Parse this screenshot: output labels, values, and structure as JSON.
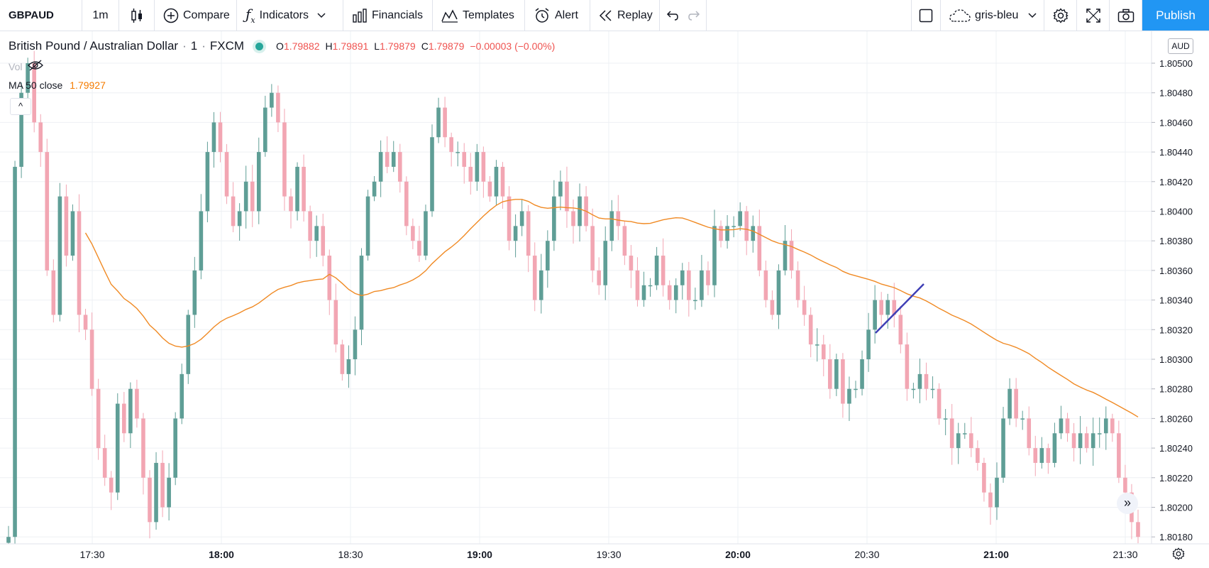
{
  "toolbar": {
    "symbol": "GBPAUD",
    "interval": "1m",
    "compare": "Compare",
    "indicators": "Indicators",
    "financials": "Financials",
    "templates": "Templates",
    "alert": "Alert",
    "replay": "Replay",
    "layout_name": "gris-bleu",
    "publish": "Publish"
  },
  "legend": {
    "pair": "British Pound / Australian Dollar",
    "sep1": "·",
    "interval": "1",
    "sep2": "·",
    "source": "FXCM",
    "o_label": "O",
    "o": "1.79882",
    "h_label": "H",
    "h": "1.79891",
    "l_label": "L",
    "l": "1.79879",
    "c_label": "C",
    "c": "1.79879",
    "change": "−0.00003 (−0.00%)",
    "vol_label": "Vol",
    "ma_label": "MA 50 close",
    "ma_value": "1.79927",
    "collapse": "^"
  },
  "price_axis": {
    "currency": "AUD",
    "ticks": [
      "1.80500",
      "1.80480",
      "1.80460",
      "1.80440",
      "1.80420",
      "1.80400",
      "1.80380",
      "1.80360",
      "1.80340",
      "1.80320",
      "1.80300",
      "1.80280",
      "1.80260",
      "1.80240",
      "1.80220",
      "1.80200",
      "1.80180"
    ]
  },
  "time_axis": {
    "ticks": [
      "17:30",
      "18:00",
      "18:30",
      "19:00",
      "19:30",
      "20:00",
      "20:30",
      "21:00",
      "21:30"
    ],
    "bold": [
      "18:00",
      "19:00",
      "20:00",
      "21:00"
    ]
  },
  "colors": {
    "up": "#5f9e96",
    "down": "#f2a6b3",
    "ma": "#f08a24",
    "trendline": "#3f3fb5",
    "grid": "#eef0f4",
    "publish": "#2196f3"
  },
  "chart_data": {
    "type": "candlestick",
    "symbol": "GBPAUD",
    "interval_minutes": 1,
    "ylim": [
      1.80172,
      1.8051
    ],
    "x_range": [
      "17:17",
      "21:32"
    ],
    "candles_close": [
      1.8018,
      1.8043,
      1.8048,
      1.805,
      1.8046,
      1.8044,
      1.8036,
      1.8033,
      1.8041,
      1.8037,
      1.804,
      1.8033,
      1.8032,
      1.8028,
      1.8024,
      1.8022,
      1.8021,
      1.8027,
      1.8025,
      1.8028,
      1.8026,
      1.8022,
      1.8019,
      1.8023,
      1.802,
      1.8022,
      1.8026,
      1.8029,
      1.8033,
      1.8036,
      1.804,
      1.8044,
      1.8046,
      1.8044,
      1.8041,
      1.8039,
      1.804,
      1.8042,
      1.804,
      1.8044,
      1.8047,
      1.8048,
      1.8046,
      1.8041,
      1.804,
      1.8043,
      1.804,
      1.8038,
      1.8039,
      1.8037,
      1.8034,
      1.8031,
      1.8029,
      1.803,
      1.8032,
      1.8037,
      1.8041,
      1.8042,
      1.8044,
      1.8043,
      1.8044,
      1.8042,
      1.8039,
      1.8038,
      1.8037,
      1.804,
      1.8045,
      1.8047,
      1.8045,
      1.8044,
      1.8044,
      1.8043,
      1.8042,
      1.8044,
      1.8042,
      1.8041,
      1.8043,
      1.8041,
      1.8038,
      1.8039,
      1.804,
      1.8037,
      1.8034,
      1.8036,
      1.8038,
      1.8041,
      1.8042,
      1.804,
      1.8039,
      1.8041,
      1.8039,
      1.8036,
      1.8035,
      1.8038,
      1.804,
      1.8039,
      1.8037,
      1.8036,
      1.8034,
      1.8035,
      1.8035,
      1.8037,
      1.8035,
      1.8034,
      1.8035,
      1.8036,
      1.8034,
      1.8034,
      1.8036,
      1.8035,
      1.8039,
      1.8038,
      1.8039,
      1.8039,
      1.804,
      1.8038,
      1.8039,
      1.8036,
      1.8034,
      1.8033,
      1.8036,
      1.8038,
      1.8036,
      1.8034,
      1.8033,
      1.8031,
      1.8031,
      1.803,
      1.8028,
      1.803,
      1.8027,
      1.8028,
      1.8028,
      1.803,
      1.8032,
      1.8034,
      1.8033,
      1.8034,
      1.8033,
      1.8031,
      1.8028,
      1.8028,
      1.8029,
      1.8028,
      1.8028,
      1.8026,
      1.8026,
      1.8024,
      1.8025,
      1.8025,
      1.8024,
      1.8023,
      1.8021,
      1.802,
      1.8022,
      1.8026,
      1.8028,
      1.8026,
      1.8026,
      1.8024,
      1.8023,
      1.8024,
      1.8023,
      1.8025,
      1.8026,
      1.8025,
      1.8024,
      1.8025,
      1.8024,
      1.8025,
      1.8025,
      1.8026,
      1.8025,
      1.8022,
      1.8021,
      1.8019,
      1.8018
    ],
    "ma50_close_shown": 1.79927,
    "last_ohlc": {
      "open": 1.79882,
      "high": 1.79891,
      "low": 1.79879,
      "close": 1.79879,
      "change": -3e-05,
      "change_pct": -0.0
    }
  }
}
